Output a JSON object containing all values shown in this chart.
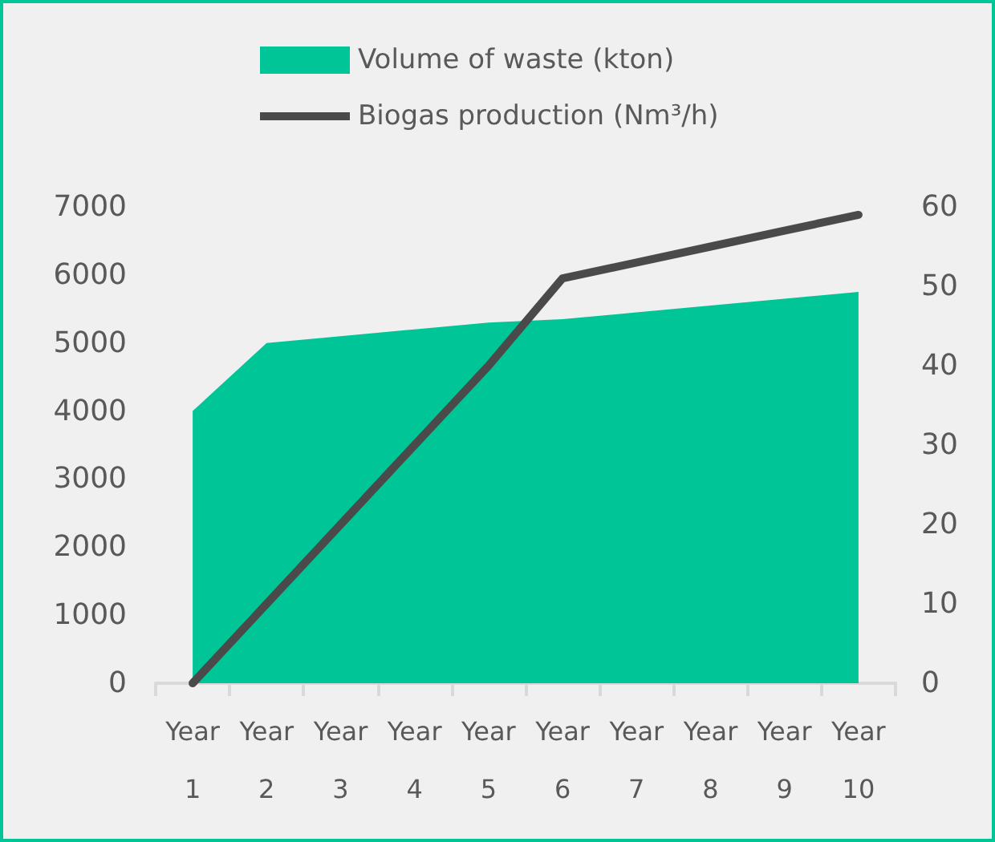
{
  "chart_data": {
    "type": "area",
    "categories": [
      "Year 1",
      "Year 2",
      "Year 3",
      "Year 4",
      "Year 5",
      "Year 6",
      "Year 7",
      "Year 8",
      "Year 9",
      "Year 10"
    ],
    "series": [
      {
        "name": "Volume of waste (kton)",
        "color": "#00c597",
        "values": [
          4000,
          5000,
          5100,
          5200,
          5300,
          5350,
          5450,
          5550,
          5650,
          5750
        ]
      },
      {
        "name": "Biogas production (Nm³/h)",
        "type": "line",
        "axis": "y2",
        "color": "#4a4a4a",
        "values": [
          0,
          10,
          20,
          30,
          40,
          51,
          53,
          55,
          57,
          59
        ]
      }
    ],
    "ylim": [
      0,
      7000
    ],
    "yticks": [
      0,
      1000,
      2000,
      3000,
      4000,
      5000,
      6000,
      7000
    ],
    "y2lim": [
      0,
      60
    ],
    "y2ticks": [
      0,
      10,
      20,
      30,
      40,
      50,
      60
    ],
    "grid": false,
    "legend": "top",
    "marker": "none"
  }
}
